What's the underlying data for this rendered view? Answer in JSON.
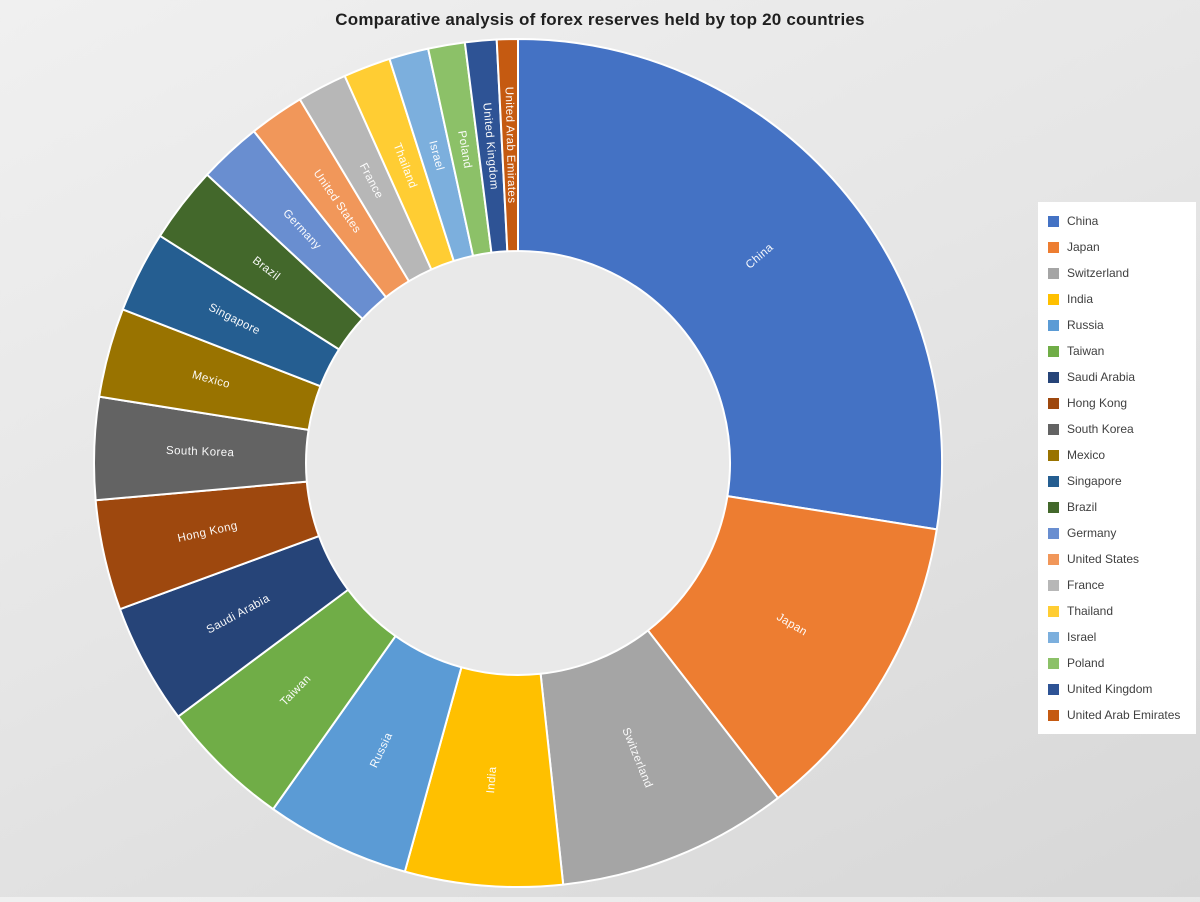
{
  "page": {
    "background_top": "#f0f0f0",
    "background_bottom": "#d7d7d7"
  },
  "chart_data": {
    "type": "pie",
    "subtype": "donut",
    "title": "Comparative analysis of forex reserves held by top 20 countries",
    "categories": [
      "China",
      "Japan",
      "Switzerland",
      "India",
      "Russia",
      "Taiwan",
      "Saudi Arabia",
      "Hong Kong",
      "South Korea",
      "Mexico",
      "Singapore",
      "Brazil",
      "Germany",
      "United States",
      "France",
      "Thailand",
      "Israel",
      "Poland",
      "United Kingdom",
      "United Arab Emirates"
    ],
    "values": [
      27.5,
      12.0,
      8.8,
      6.0,
      5.5,
      5.0,
      4.6,
      4.2,
      3.9,
      3.4,
      3.1,
      2.9,
      2.4,
      2.1,
      1.9,
      1.8,
      1.5,
      1.4,
      1.2,
      0.8
    ],
    "value_unit": "share of total, percent (estimated from arc angles; no numeric labels are shown in the chart)",
    "colors": [
      "#4472C4",
      "#ED7D31",
      "#A5A5A5",
      "#FFC000",
      "#5B9BD5",
      "#70AD47",
      "#264478",
      "#9E480E",
      "#636363",
      "#997300",
      "#255E91",
      "#43682B",
      "#698ED0",
      "#F1975A",
      "#B7B7B7",
      "#FFCD33",
      "#7CAFDD",
      "#8CC168",
      "#2E5395",
      "#C55A11"
    ],
    "start_angle_deg": 0,
    "direction": "clockwise",
    "inner_radius_ratio": 0.5,
    "hole_color": "#e9e9e9",
    "slice_border_color": "#ffffff",
    "slice_labels_shown": true,
    "legend_position": "right",
    "grid": "off"
  }
}
